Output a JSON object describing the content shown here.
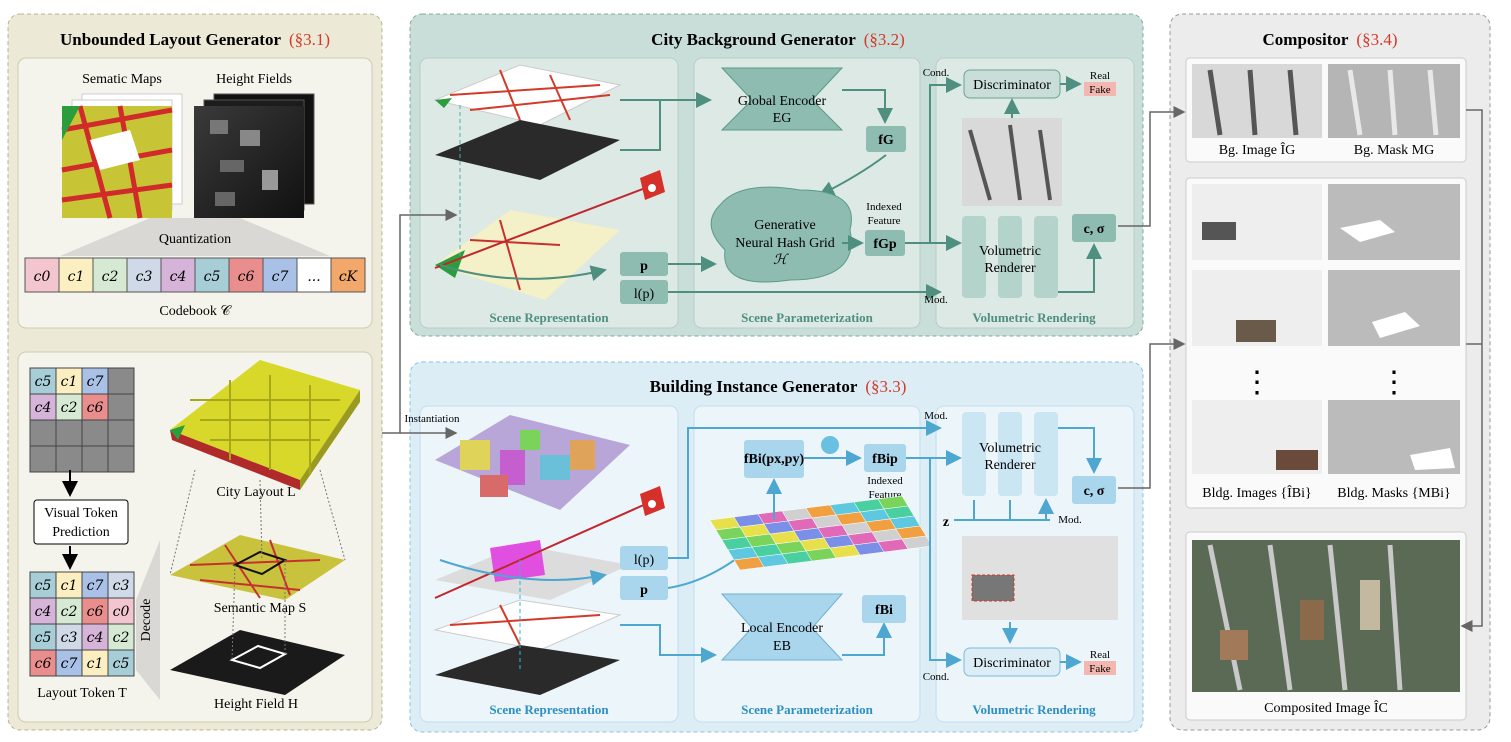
{
  "layout_gen": {
    "title": "Unbounded Layout Generator",
    "ref": "(§3.1)",
    "semantic_maps": "Sematic Maps",
    "height_fields": "Height Fields",
    "quantization": "Quantization",
    "codebook_tokens": [
      "c0",
      "c1",
      "c2",
      "c3",
      "c4",
      "c5",
      "c6",
      "c7",
      "...",
      "cK"
    ],
    "codebook_label": "Codebook 𝒞",
    "token_grid_top": [
      [
        "c5",
        "c1",
        "c7",
        ""
      ],
      [
        "c4",
        "c2",
        "c6",
        ""
      ],
      [
        "",
        "",
        "",
        ""
      ],
      [
        "",
        "",
        "",
        ""
      ]
    ],
    "visual_token": "Visual Token",
    "prediction": "Prediction",
    "token_grid_bottom": [
      [
        "c5",
        "c1",
        "c7",
        "c3"
      ],
      [
        "c4",
        "c2",
        "c6",
        "c0"
      ],
      [
        "c5",
        "c3",
        "c4",
        "c2"
      ],
      [
        "c6",
        "c7",
        "c1",
        "c5"
      ]
    ],
    "decode": "Decode",
    "layout_token": "Layout Token T",
    "city_layout": "City Layout L",
    "semantic_map": "Semantic Map S",
    "height_field": "Height Field H"
  },
  "city_bg": {
    "title": "City Background Generator",
    "ref": "(§3.2)",
    "scene_repr": "Scene Representation",
    "scene_param": "Scene Parameterization",
    "vol_render": "Volumetric Rendering",
    "global_encoder": "Global Encoder",
    "global_encoder_sub": "EG",
    "fG": "fG",
    "hash_grid_1": "Generative",
    "hash_grid_2": "Neural Hash Grid",
    "hash_grid_3": "ℋ",
    "indexed": "Indexed",
    "feature": "Feature",
    "fGp": "fGp",
    "p": "p",
    "lp": "l(p)",
    "cond": "Cond.",
    "mod": "Mod.",
    "discriminator": "Discriminator",
    "real": "Real",
    "fake": "Fake",
    "renderer_1": "Volumetric",
    "renderer_2": "Renderer",
    "c_sigma": "c, σ"
  },
  "building": {
    "title": "Building Instance Generator",
    "ref": "(§3.3)",
    "instantiation": "Instantiation",
    "scene_repr": "Scene Representation",
    "scene_param": "Scene Parameterization",
    "vol_render": "Volumetric Rendering",
    "f_pxpy": "fBi(px,py)",
    "f_Bip": "fBip",
    "indexed": "Indexed",
    "feature": "Feature",
    "lp": "l(p)",
    "p": "p",
    "local_encoder": "Local Encoder",
    "local_encoder_sub": "EB",
    "fBi": "fBi",
    "mod": "Mod.",
    "mod2": "Mod.",
    "z": "z",
    "renderer_1": "Volumetric",
    "renderer_2": "Renderer",
    "c_sigma": "c, σ",
    "discriminator": "Discriminator",
    "cond": "Cond.",
    "real": "Real",
    "fake": "Fake"
  },
  "compositor": {
    "title": "Compositor",
    "ref": "(§3.4)",
    "bg_image": "Bg. Image ÎG",
    "bg_mask": "Bg. Mask MG",
    "bldg_images": "Bldg. Images {ÎBi}",
    "bldg_masks": "Bldg. Masks {MBi}",
    "composited": "Composited Image ÎC"
  },
  "colors": {
    "layout_bg": "#ece9d6",
    "city_bg": "#c9ded8",
    "building_bg": "#dcedf6",
    "compositor_bg": "#ececec",
    "teal_box": "#8fbcb0",
    "blue_box": "#a9d6ec",
    "red_ref": "#d23a2a"
  }
}
